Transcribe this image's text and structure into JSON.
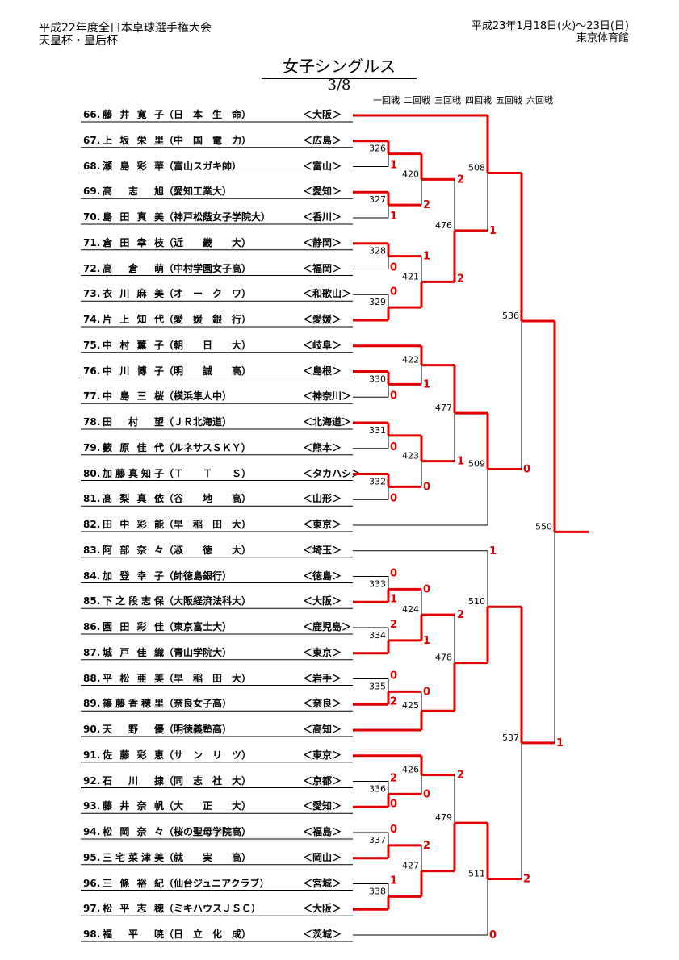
{
  "header": {
    "tournament": "平成22年度全日本卓球選手権大会",
    "cups": "天皇杯・皇后杯",
    "dates": "平成23年1月18日(火)～23日(日)",
    "venue": "東京体育館"
  },
  "title": "女子シングルス",
  "page": "3/8",
  "rounds": [
    "一回戦",
    "二回戦",
    "三回戦",
    "四回戦",
    "五回戦",
    "六回戦"
  ],
  "players": [
    {
      "no": "66.",
      "name": "藤井寛子",
      "club": "（日　本　生　命）",
      "pref": "＜大阪＞"
    },
    {
      "no": "67.",
      "name": "上坂栄里",
      "club": "（中　国　電　力）",
      "pref": "＜広島＞"
    },
    {
      "no": "68.",
      "name": "瀬島彩華",
      "club": "（富山スガキ帥）",
      "pref": "＜富山＞"
    },
    {
      "no": "69.",
      "name": "高志旭",
      "club": "（愛知工業大）",
      "pref": "＜愛知＞"
    },
    {
      "no": "70.",
      "name": "島田真美",
      "club": "（神戸松蔭女子学院大）",
      "pref": "＜香川＞"
    },
    {
      "no": "71.",
      "name": "倉田幸枝",
      "club": "（近　　畿　　大）",
      "pref": "＜静岡＞"
    },
    {
      "no": "72.",
      "name": "高倉萌",
      "club": "（中村学園女子高）",
      "pref": "＜福岡＞"
    },
    {
      "no": "73.",
      "name": "衣川麻美",
      "club": "（オ　ー　ク　ワ）",
      "pref": "＜和歌山＞"
    },
    {
      "no": "74.",
      "name": "片上知代",
      "club": "（愛　媛　銀　行）",
      "pref": "＜愛媛＞"
    },
    {
      "no": "75.",
      "name": "中村薫子",
      "club": "（朝　　日　　大）",
      "pref": "＜岐阜＞"
    },
    {
      "no": "76.",
      "name": "中川博子",
      "club": "（明　　誠　　高）",
      "pref": "＜島根＞"
    },
    {
      "no": "77.",
      "name": "中島三桜",
      "club": "（横浜隼人中）",
      "pref": "＜神奈川＞"
    },
    {
      "no": "78.",
      "name": "田村望",
      "club": "（ＪＲ北海道）",
      "pref": "＜北海道＞"
    },
    {
      "no": "79.",
      "name": "籔原佳代",
      "club": "（ルネサスＳＫＹ）",
      "pref": "＜熊本＞"
    },
    {
      "no": "80.",
      "name": "加藤真知子",
      "club": "（Ｔ　　Ｔ　　Ｓ）",
      "pref": "＜タカハシ＞"
    },
    {
      "no": "81.",
      "name": "髙梨真依",
      "club": "（谷　　地　　高）",
      "pref": "＜山形＞"
    },
    {
      "no": "82.",
      "name": "田中彩能",
      "club": "（早　稲　田　大）",
      "pref": "＜東京＞"
    },
    {
      "no": "83.",
      "name": "阿部奈々",
      "club": "（淑　　徳　　大）",
      "pref": "＜埼玉＞"
    },
    {
      "no": "84.",
      "name": "加登幸子",
      "club": "（帥徳島銀行）",
      "pref": "＜徳島＞"
    },
    {
      "no": "85.",
      "name": "下之段志保",
      "club": "（大阪経済法科大）",
      "pref": "＜大阪＞"
    },
    {
      "no": "86.",
      "name": "園田彩佳",
      "club": "（東京富士大）",
      "pref": "＜鹿児島＞"
    },
    {
      "no": "87.",
      "name": "城戸佳織",
      "club": "（青山学院大）",
      "pref": "＜東京＞"
    },
    {
      "no": "88.",
      "name": "平松亜美",
      "club": "（早　稲　田　大）",
      "pref": "＜岩手＞"
    },
    {
      "no": "89.",
      "name": "篠藤香穂里",
      "club": "（奈良女子高）",
      "pref": "＜奈良＞"
    },
    {
      "no": "90.",
      "name": "天野優",
      "club": "（明徳義塾高）",
      "pref": "＜高知＞"
    },
    {
      "no": "91.",
      "name": "佐藤彩恵",
      "club": "（サ　ン　リ　ツ）",
      "pref": "＜東京＞"
    },
    {
      "no": "92.",
      "name": "石川捸",
      "club": "（同　志　社　大）",
      "pref": "＜京都＞"
    },
    {
      "no": "93.",
      "name": "藤井奈帆",
      "club": "（大　　正　　大）",
      "pref": "＜愛知＞"
    },
    {
      "no": "94.",
      "name": "松岡奈々",
      "club": "（桜の聖母学院高）",
      "pref": "＜福島＞"
    },
    {
      "no": "95.",
      "name": "三宅菜津美",
      "club": "（就　　実　　高）",
      "pref": "＜岡山＞"
    },
    {
      "no": "96.",
      "name": "三條裕紀",
      "club": "（仙台ジュニアクラブ）",
      "pref": "＜宮城＞"
    },
    {
      "no": "97.",
      "name": "松平志穂",
      "club": "（ミキハウスＪＳＣ）",
      "pref": "＜大阪＞"
    },
    {
      "no": "98.",
      "name": "福平暁",
      "club": "（日　立　化　成）",
      "pref": "＜茨城＞"
    }
  ],
  "match_numbers": [
    "326",
    "327",
    "328",
    "329",
    "330",
    "331",
    "332",
    "333",
    "334",
    "335",
    "336",
    "337",
    "338",
    "420",
    "421",
    "422",
    "423",
    "424",
    "425",
    "426",
    "427",
    "476",
    "477",
    "478",
    "479",
    "508",
    "509",
    "510",
    "511",
    "536",
    "537",
    "550"
  ],
  "scores": [
    "1",
    "1",
    "0",
    "0",
    "0",
    "0",
    "0",
    "0",
    "2",
    "0",
    "2",
    "0",
    "2",
    "2",
    "1",
    "2",
    "1",
    "1",
    "0",
    "0",
    "1",
    "2",
    "0",
    "2",
    "0",
    "2",
    "1",
    "0",
    "1",
    "2",
    "1",
    "0",
    "2",
    "1",
    "0",
    "1"
  ],
  "colors": {
    "winner_line": "#e00000",
    "loser_line": "#000000",
    "score": "#e00000"
  }
}
